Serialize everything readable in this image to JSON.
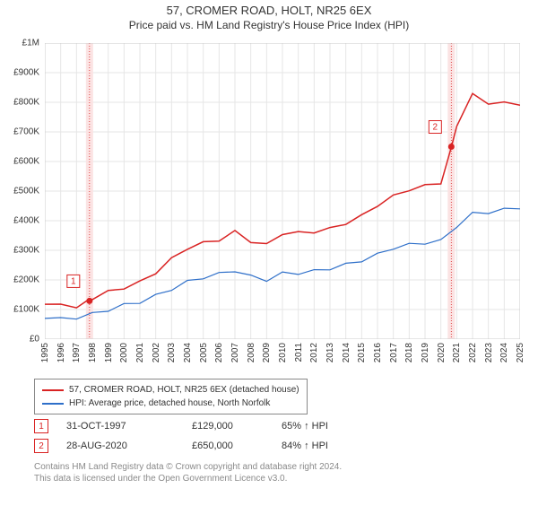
{
  "title": "57, CROMER ROAD, HOLT, NR25 6EX",
  "subtitle": "Price paid vs. HM Land Registry's House Price Index (HPI)",
  "chart": {
    "type": "line",
    "background_color": "#ffffff",
    "grid_color": "#e6e6e6",
    "plot_border_color": "#cccccc",
    "title_fontsize": 13,
    "label_fontsize": 10,
    "ylim": [
      0,
      1000000
    ],
    "ytick_step": 100000,
    "yticks": [
      "£0",
      "£100K",
      "£200K",
      "£300K",
      "£400K",
      "£500K",
      "£600K",
      "£700K",
      "£800K",
      "£900K",
      "£1M"
    ],
    "xlim": [
      1995,
      2025
    ],
    "xticks": [
      1995,
      1996,
      1997,
      1998,
      1999,
      2000,
      2001,
      2002,
      2003,
      2004,
      2005,
      2006,
      2007,
      2008,
      2009,
      2010,
      2011,
      2012,
      2013,
      2014,
      2015,
      2016,
      2017,
      2018,
      2019,
      2020,
      2021,
      2022,
      2023,
      2024,
      2025
    ],
    "series": [
      {
        "name": "price_paid",
        "label": "57, CROMER ROAD, HOLT, NR25 6EX (detached house)",
        "color": "#d92323",
        "line_width": 1.5,
        "x": [
          1995,
          1996,
          1997,
          1997.82,
          1998,
          1999,
          2000,
          2001,
          2002,
          2003,
          2004,
          2005,
          2006,
          2007,
          2008,
          2009,
          2010,
          2011,
          2012,
          2013,
          2014,
          2015,
          2016,
          2017,
          2018,
          2019,
          2020,
          2020.66,
          2021,
          2022,
          2023,
          2024,
          2025
        ],
        "y": [
          118000,
          117000,
          120000,
          129000,
          135000,
          150000,
          175000,
          195000,
          235000,
          270000,
          305000,
          315000,
          335000,
          365000,
          340000,
          320000,
          355000,
          350000,
          360000,
          375000,
          400000,
          420000,
          450000,
          475000,
          500000,
          520000,
          535000,
          650000,
          720000,
          820000,
          790000,
          800000,
          790000
        ]
      },
      {
        "name": "hpi",
        "label": "HPI: Average price, detached house, North Norfolk",
        "color": "#2e6fc9",
        "line_width": 1.2,
        "x": [
          1995,
          1996,
          1997,
          1998,
          1999,
          2000,
          2001,
          2002,
          2003,
          2004,
          2005,
          2006,
          2007,
          2008,
          2009,
          2010,
          2011,
          2012,
          2013,
          2014,
          2015,
          2016,
          2017,
          2018,
          2019,
          2020,
          2021,
          2022,
          2023,
          2024,
          2025
        ],
        "y": [
          70000,
          72000,
          78000,
          85000,
          95000,
          110000,
          125000,
          150000,
          175000,
          195000,
          205000,
          215000,
          230000,
          215000,
          205000,
          225000,
          220000,
          225000,
          235000,
          255000,
          270000,
          290000,
          305000,
          315000,
          320000,
          335000,
          385000,
          430000,
          425000,
          435000,
          440000
        ]
      }
    ],
    "markers": [
      {
        "n": "1",
        "x": 1997.82,
        "y": 129000,
        "color": "#d92323",
        "band_color": "#fbe3e3"
      },
      {
        "n": "2",
        "x": 2020.66,
        "y": 650000,
        "color": "#d92323",
        "band_color": "#fbe3e3"
      }
    ]
  },
  "legend": {
    "series1_label": "57, CROMER ROAD, HOLT, NR25 6EX (detached house)",
    "series2_label": "HPI: Average price, detached house, North Norfolk"
  },
  "sales": [
    {
      "n": "1",
      "date": "31-OCT-1997",
      "price": "£129,000",
      "pct": "65% ↑ HPI",
      "color": "#d92323"
    },
    {
      "n": "2",
      "date": "28-AUG-2020",
      "price": "£650,000",
      "pct": "84% ↑ HPI",
      "color": "#d92323"
    }
  ],
  "footer": {
    "line1": "Contains HM Land Registry data © Crown copyright and database right 2024.",
    "line2": "This data is licensed under the Open Government Licence v3.0."
  }
}
